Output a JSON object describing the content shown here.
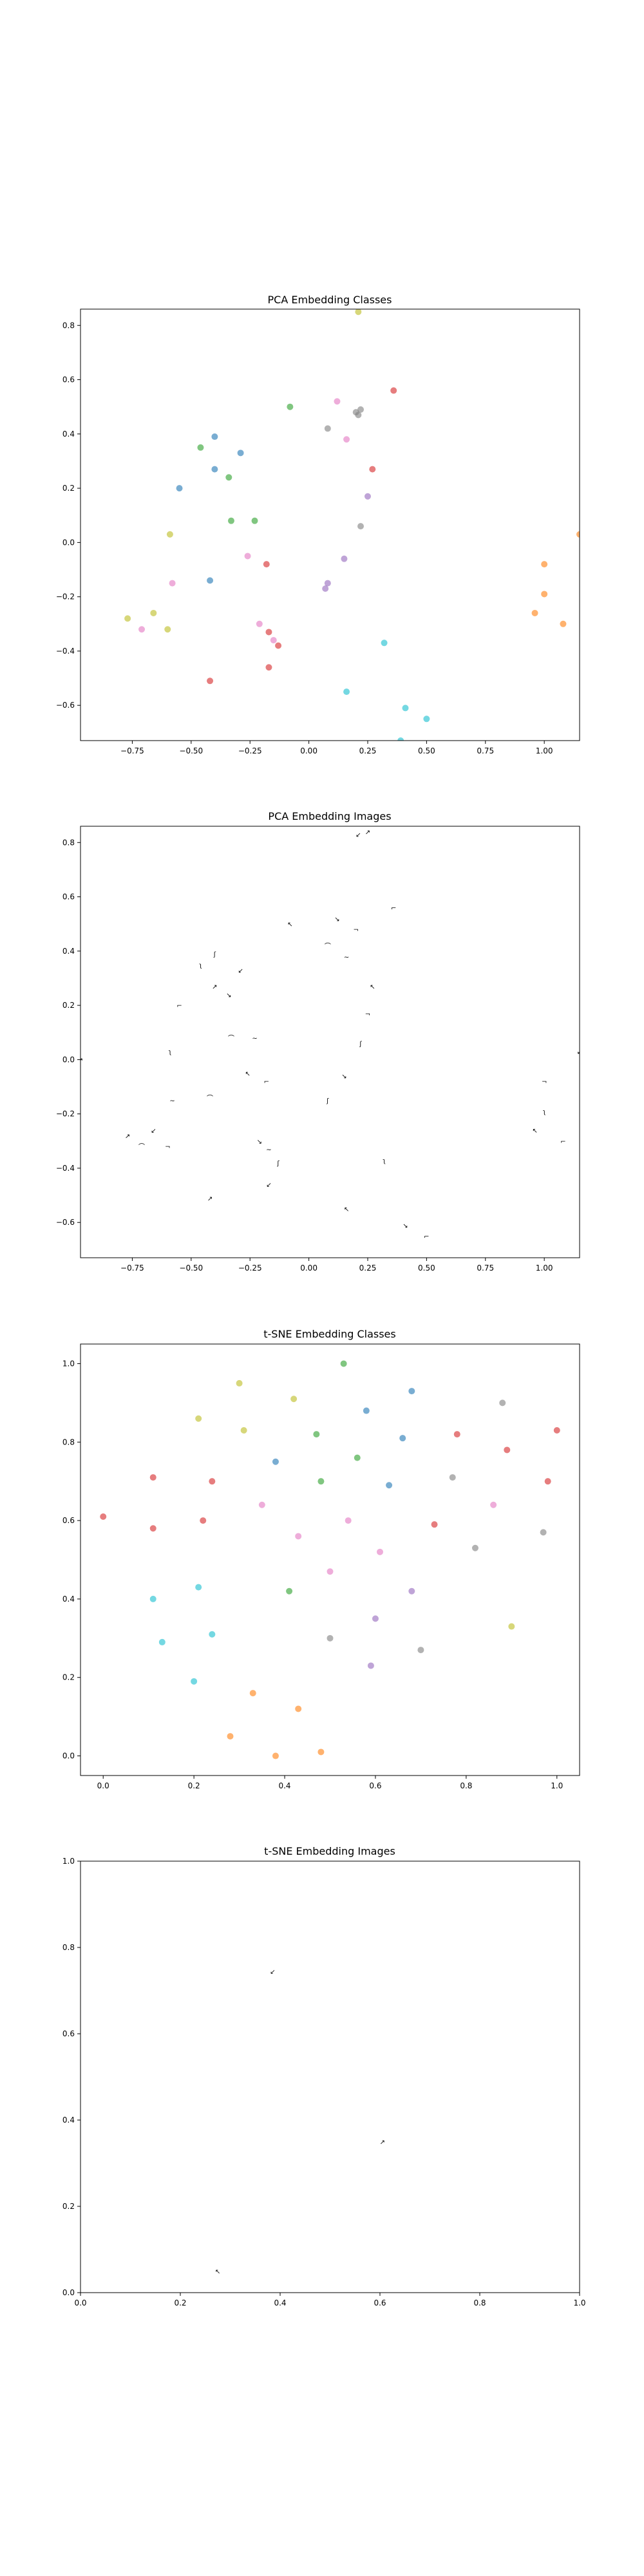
{
  "chart_data": [
    {
      "type": "scatter",
      "title": "PCA Embedding Classes",
      "xlabel": "",
      "ylabel": "",
      "xlim": [
        -0.97,
        1.15
      ],
      "ylim": [
        -0.73,
        0.86
      ],
      "xticks": [
        "−0.75",
        "−0.50",
        "−0.25",
        "0.00",
        "0.25",
        "0.50",
        "0.75",
        "1.00"
      ],
      "xtick_values": [
        -0.75,
        -0.5,
        -0.25,
        0,
        0.25,
        0.5,
        0.75,
        1.0
      ],
      "yticks": [
        "−0.6",
        "−0.4",
        "−0.2",
        "0.0",
        "0.2",
        "0.4",
        "0.6",
        "0.8"
      ],
      "ytick_values": [
        -0.6,
        -0.4,
        -0.2,
        0,
        0.2,
        0.4,
        0.6,
        0.8
      ],
      "grid": false,
      "points": [
        {
          "x": 0.21,
          "y": 0.85,
          "color": "#bcbd22"
        },
        {
          "x": -0.08,
          "y": 0.5,
          "color": "#2ca02c"
        },
        {
          "x": 0.12,
          "y": 0.52,
          "color": "#e377c2"
        },
        {
          "x": 0.36,
          "y": 0.56,
          "color": "#d62728"
        },
        {
          "x": 0.2,
          "y": 0.48,
          "color": "#7f7f7f"
        },
        {
          "x": 0.22,
          "y": 0.49,
          "color": "#7f7f7f"
        },
        {
          "x": 0.21,
          "y": 0.47,
          "color": "#7f7f7f"
        },
        {
          "x": 0.08,
          "y": 0.42,
          "color": "#7f7f7f"
        },
        {
          "x": 0.16,
          "y": 0.38,
          "color": "#e377c2"
        },
        {
          "x": -0.4,
          "y": 0.39,
          "color": "#1f77b4"
        },
        {
          "x": -0.46,
          "y": 0.35,
          "color": "#2ca02c"
        },
        {
          "x": -0.29,
          "y": 0.33,
          "color": "#1f77b4"
        },
        {
          "x": -0.4,
          "y": 0.27,
          "color": "#1f77b4"
        },
        {
          "x": 0.27,
          "y": 0.27,
          "color": "#d62728"
        },
        {
          "x": -0.34,
          "y": 0.24,
          "color": "#2ca02c"
        },
        {
          "x": -0.55,
          "y": 0.2,
          "color": "#1f77b4"
        },
        {
          "x": 0.25,
          "y": 0.17,
          "color": "#9467bd"
        },
        {
          "x": -0.33,
          "y": 0.08,
          "color": "#2ca02c"
        },
        {
          "x": -0.23,
          "y": 0.08,
          "color": "#2ca02c"
        },
        {
          "x": 0.22,
          "y": 0.06,
          "color": "#7f7f7f"
        },
        {
          "x": -0.59,
          "y": 0.03,
          "color": "#bcbd22"
        },
        {
          "x": 1.15,
          "y": 0.03,
          "color": "#ff7f0e"
        },
        {
          "x": -0.26,
          "y": -0.05,
          "color": "#e377c2"
        },
        {
          "x": 0.15,
          "y": -0.06,
          "color": "#9467bd"
        },
        {
          "x": -0.18,
          "y": -0.08,
          "color": "#d62728"
        },
        {
          "x": 1.0,
          "y": -0.08,
          "color": "#ff7f0e"
        },
        {
          "x": -0.42,
          "y": -0.14,
          "color": "#1f77b4"
        },
        {
          "x": -0.58,
          "y": -0.15,
          "color": "#e377c2"
        },
        {
          "x": 0.08,
          "y": -0.15,
          "color": "#9467bd"
        },
        {
          "x": 0.07,
          "y": -0.17,
          "color": "#9467bd"
        },
        {
          "x": 1.0,
          "y": -0.19,
          "color": "#ff7f0e"
        },
        {
          "x": -0.66,
          "y": -0.26,
          "color": "#bcbd22"
        },
        {
          "x": -0.77,
          "y": -0.28,
          "color": "#bcbd22"
        },
        {
          "x": 0.96,
          "y": -0.26,
          "color": "#ff7f0e"
        },
        {
          "x": -0.21,
          "y": -0.3,
          "color": "#e377c2"
        },
        {
          "x": 1.08,
          "y": -0.3,
          "color": "#ff7f0e"
        },
        {
          "x": -0.6,
          "y": -0.32,
          "color": "#bcbd22"
        },
        {
          "x": -0.71,
          "y": -0.32,
          "color": "#e377c2"
        },
        {
          "x": -0.17,
          "y": -0.33,
          "color": "#d62728"
        },
        {
          "x": -0.15,
          "y": -0.36,
          "color": "#e377c2"
        },
        {
          "x": -0.13,
          "y": -0.38,
          "color": "#d62728"
        },
        {
          "x": 0.32,
          "y": -0.37,
          "color": "#17becf"
        },
        {
          "x": -0.17,
          "y": -0.46,
          "color": "#d62728"
        },
        {
          "x": -0.42,
          "y": -0.51,
          "color": "#d62728"
        },
        {
          "x": 0.16,
          "y": -0.55,
          "color": "#17becf"
        },
        {
          "x": 0.41,
          "y": -0.61,
          "color": "#17becf"
        },
        {
          "x": 0.5,
          "y": -0.65,
          "color": "#17becf"
        },
        {
          "x": 0.39,
          "y": -0.73,
          "color": "#17becf"
        }
      ]
    },
    {
      "type": "scatter",
      "title": "PCA Embedding Images",
      "xlabel": "",
      "ylabel": "",
      "xlim": [
        -0.97,
        1.15
      ],
      "ylim": [
        -0.73,
        0.86
      ],
      "xticks": [
        "−0.75",
        "−0.50",
        "−0.25",
        "0.00",
        "0.25",
        "0.50",
        "0.75",
        "1.00"
      ],
      "xtick_values": [
        -0.75,
        -0.5,
        -0.25,
        0,
        0.25,
        0.5,
        0.75,
        1.0
      ],
      "yticks": [
        "−0.6",
        "−0.4",
        "−0.2",
        "0.0",
        "0.2",
        "0.4",
        "0.6",
        "0.8"
      ],
      "ytick_values": [
        -0.6,
        -0.4,
        -0.2,
        0,
        0.2,
        0.4,
        0.6,
        0.8
      ],
      "grid": false,
      "marker": "digit-image",
      "points": [
        {
          "x": 0.21,
          "y": 0.83
        },
        {
          "x": 0.25,
          "y": 0.84
        },
        {
          "x": -0.08,
          "y": 0.5
        },
        {
          "x": 0.12,
          "y": 0.52
        },
        {
          "x": 0.36,
          "y": 0.56
        },
        {
          "x": 0.2,
          "y": 0.48
        },
        {
          "x": 0.08,
          "y": 0.42
        },
        {
          "x": 0.16,
          "y": 0.38
        },
        {
          "x": -0.4,
          "y": 0.39
        },
        {
          "x": -0.46,
          "y": 0.35
        },
        {
          "x": -0.29,
          "y": 0.33
        },
        {
          "x": -0.4,
          "y": 0.27
        },
        {
          "x": 0.27,
          "y": 0.27
        },
        {
          "x": -0.34,
          "y": 0.24
        },
        {
          "x": -0.55,
          "y": 0.2
        },
        {
          "x": 0.25,
          "y": 0.17
        },
        {
          "x": -0.33,
          "y": 0.08
        },
        {
          "x": -0.23,
          "y": 0.08
        },
        {
          "x": 0.22,
          "y": 0.06
        },
        {
          "x": -0.59,
          "y": 0.03
        },
        {
          "x": 1.15,
          "y": 0.03
        },
        {
          "x": -0.97,
          "y": 0.0
        },
        {
          "x": -0.26,
          "y": -0.05
        },
        {
          "x": 0.15,
          "y": -0.06
        },
        {
          "x": -0.18,
          "y": -0.08
        },
        {
          "x": 1.0,
          "y": -0.08
        },
        {
          "x": -0.42,
          "y": -0.14
        },
        {
          "x": -0.58,
          "y": -0.15
        },
        {
          "x": 0.08,
          "y": -0.15
        },
        {
          "x": 1.0,
          "y": -0.19
        },
        {
          "x": -0.66,
          "y": -0.26
        },
        {
          "x": -0.77,
          "y": -0.28
        },
        {
          "x": 0.96,
          "y": -0.26
        },
        {
          "x": -0.21,
          "y": -0.3
        },
        {
          "x": 1.08,
          "y": -0.3
        },
        {
          "x": -0.6,
          "y": -0.32
        },
        {
          "x": -0.71,
          "y": -0.32
        },
        {
          "x": -0.17,
          "y": -0.33
        },
        {
          "x": -0.13,
          "y": -0.38
        },
        {
          "x": 0.32,
          "y": -0.37
        },
        {
          "x": -0.17,
          "y": -0.46
        },
        {
          "x": -0.42,
          "y": -0.51
        },
        {
          "x": 0.16,
          "y": -0.55
        },
        {
          "x": 0.41,
          "y": -0.61
        },
        {
          "x": 0.5,
          "y": -0.65
        },
        {
          "x": 0.39,
          "y": -0.73
        }
      ]
    },
    {
      "type": "scatter",
      "title": "t-SNE Embedding Classes",
      "xlabel": "",
      "ylabel": "",
      "xlim": [
        -0.05,
        1.05
      ],
      "ylim": [
        -0.05,
        1.05
      ],
      "xticks": [
        "0.0",
        "0.2",
        "0.4",
        "0.6",
        "0.8",
        "1.0"
      ],
      "xtick_values": [
        0,
        0.2,
        0.4,
        0.6,
        0.8,
        1.0
      ],
      "yticks": [
        "0.0",
        "0.2",
        "0.4",
        "0.6",
        "0.8",
        "1.0"
      ],
      "ytick_values": [
        0,
        0.2,
        0.4,
        0.6,
        0.8,
        1.0
      ],
      "grid": false,
      "points": [
        {
          "x": 0.53,
          "y": 1.0,
          "color": "#2ca02c"
        },
        {
          "x": 0.3,
          "y": 0.95,
          "color": "#bcbd22"
        },
        {
          "x": 0.68,
          "y": 0.93,
          "color": "#1f77b4"
        },
        {
          "x": 0.42,
          "y": 0.91,
          "color": "#bcbd22"
        },
        {
          "x": 0.88,
          "y": 0.9,
          "color": "#7f7f7f"
        },
        {
          "x": 0.58,
          "y": 0.88,
          "color": "#1f77b4"
        },
        {
          "x": 0.21,
          "y": 0.86,
          "color": "#bcbd22"
        },
        {
          "x": 1.0,
          "y": 0.83,
          "color": "#d62728"
        },
        {
          "x": 0.31,
          "y": 0.83,
          "color": "#bcbd22"
        },
        {
          "x": 0.47,
          "y": 0.82,
          "color": "#2ca02c"
        },
        {
          "x": 0.78,
          "y": 0.82,
          "color": "#d62728"
        },
        {
          "x": 0.66,
          "y": 0.81,
          "color": "#1f77b4"
        },
        {
          "x": 0.89,
          "y": 0.78,
          "color": "#d62728"
        },
        {
          "x": 0.56,
          "y": 0.76,
          "color": "#2ca02c"
        },
        {
          "x": 0.38,
          "y": 0.75,
          "color": "#1f77b4"
        },
        {
          "x": 0.11,
          "y": 0.71,
          "color": "#d62728"
        },
        {
          "x": 0.77,
          "y": 0.71,
          "color": "#7f7f7f"
        },
        {
          "x": 0.48,
          "y": 0.7,
          "color": "#2ca02c"
        },
        {
          "x": 0.24,
          "y": 0.7,
          "color": "#d62728"
        },
        {
          "x": 0.63,
          "y": 0.69,
          "color": "#1f77b4"
        },
        {
          "x": 0.98,
          "y": 0.7,
          "color": "#d62728"
        },
        {
          "x": 0.35,
          "y": 0.64,
          "color": "#e377c2"
        },
        {
          "x": 0.86,
          "y": 0.64,
          "color": "#e377c2"
        },
        {
          "x": 0.0,
          "y": 0.61,
          "color": "#d62728"
        },
        {
          "x": 0.22,
          "y": 0.6,
          "color": "#d62728"
        },
        {
          "x": 0.54,
          "y": 0.6,
          "color": "#e377c2"
        },
        {
          "x": 0.73,
          "y": 0.59,
          "color": "#d62728"
        },
        {
          "x": 0.11,
          "y": 0.58,
          "color": "#d62728"
        },
        {
          "x": 0.97,
          "y": 0.57,
          "color": "#7f7f7f"
        },
        {
          "x": 0.43,
          "y": 0.56,
          "color": "#e377c2"
        },
        {
          "x": 0.82,
          "y": 0.53,
          "color": "#7f7f7f"
        },
        {
          "x": 0.61,
          "y": 0.52,
          "color": "#e377c2"
        },
        {
          "x": 0.5,
          "y": 0.47,
          "color": "#e377c2"
        },
        {
          "x": 0.21,
          "y": 0.43,
          "color": "#17becf"
        },
        {
          "x": 0.41,
          "y": 0.42,
          "color": "#2ca02c"
        },
        {
          "x": 0.68,
          "y": 0.42,
          "color": "#9467bd"
        },
        {
          "x": 0.11,
          "y": 0.4,
          "color": "#17becf"
        },
        {
          "x": 0.6,
          "y": 0.35,
          "color": "#9467bd"
        },
        {
          "x": 0.9,
          "y": 0.33,
          "color": "#bcbd22"
        },
        {
          "x": 0.24,
          "y": 0.31,
          "color": "#17becf"
        },
        {
          "x": 0.5,
          "y": 0.3,
          "color": "#7f7f7f"
        },
        {
          "x": 0.13,
          "y": 0.29,
          "color": "#17becf"
        },
        {
          "x": 0.7,
          "y": 0.27,
          "color": "#7f7f7f"
        },
        {
          "x": 0.59,
          "y": 0.23,
          "color": "#9467bd"
        },
        {
          "x": 0.2,
          "y": 0.19,
          "color": "#17becf"
        },
        {
          "x": 0.33,
          "y": 0.16,
          "color": "#ff7f0e"
        },
        {
          "x": 0.43,
          "y": 0.12,
          "color": "#ff7f0e"
        },
        {
          "x": 0.28,
          "y": 0.05,
          "color": "#ff7f0e"
        },
        {
          "x": 0.48,
          "y": 0.01,
          "color": "#ff7f0e"
        },
        {
          "x": 0.38,
          "y": 0.0,
          "color": "#ff7f0e"
        }
      ]
    },
    {
      "type": "scatter",
      "title": "t-SNE Embedding Images",
      "xlabel": "",
      "ylabel": "",
      "xlim": [
        0.0,
        1.0
      ],
      "ylim": [
        0.0,
        1.0
      ],
      "xticks": [
        "0.0",
        "0.2",
        "0.4",
        "0.6",
        "0.8",
        "1.0"
      ],
      "xtick_values": [
        0,
        0.2,
        0.4,
        0.6,
        0.8,
        1.0
      ],
      "yticks": [
        "0.0",
        "0.2",
        "0.4",
        "0.6",
        "0.8",
        "1.0"
      ],
      "ytick_values": [
        0,
        0.2,
        0.4,
        0.6,
        0.8,
        1.0
      ],
      "grid": false,
      "marker": "digit-image",
      "points": [
        {
          "x": 0.385,
          "y": 0.745
        },
        {
          "x": 0.605,
          "y": 0.35
        },
        {
          "x": 0.275,
          "y": 0.05
        }
      ]
    }
  ]
}
